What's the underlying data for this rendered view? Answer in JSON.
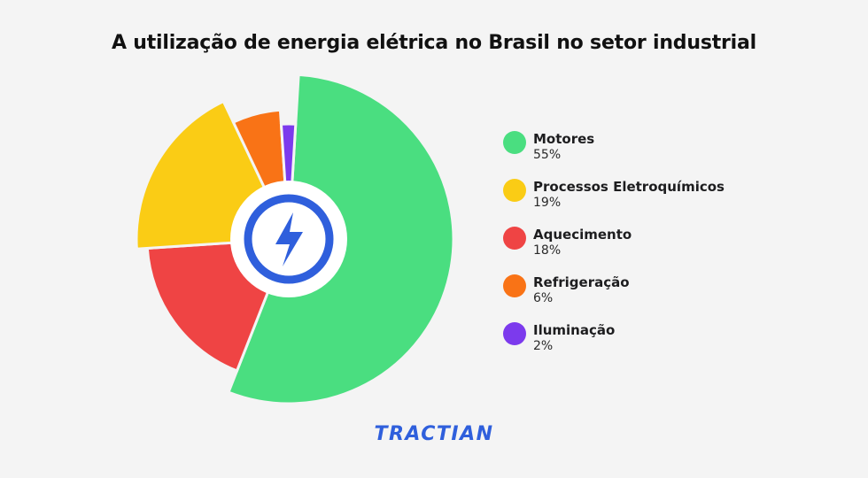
{
  "chart_data": {
    "type": "pie",
    "title": "A utilização de energia elétrica no Brasil no setor industrial",
    "slices": [
      {
        "label": "Motores",
        "value": 55,
        "display": "55%",
        "color": "#4ade80"
      },
      {
        "label": "Aquecimento",
        "value": 18,
        "display": "18%",
        "color": "#ef4444"
      },
      {
        "label": "Processos Eletroquímicos",
        "value": 19,
        "display": "19%",
        "color": "#facc15"
      },
      {
        "label": "Refrigeração",
        "value": 6,
        "display": "6%",
        "color": "#f97316"
      },
      {
        "label": "Iluminação",
        "value": 2,
        "display": "2%",
        "color": "#7c3aed"
      }
    ],
    "legend_order": [
      "Motores",
      "Processos Eletroquímicos",
      "Aquecimento",
      "Refrigeração",
      "Iluminação"
    ],
    "legend_position": "right"
  },
  "center_icon": "lightning-bolt-icon",
  "accent_color": "#2f5fdc",
  "brand": "TRACTIAN"
}
